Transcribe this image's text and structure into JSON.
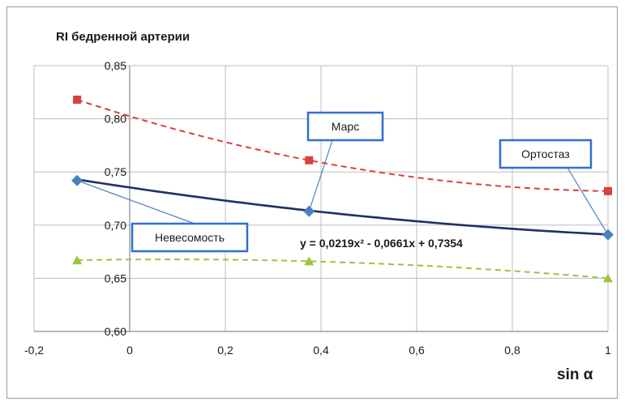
{
  "chart_data": {
    "type": "scatter",
    "title": "RI бедренной артерии",
    "xlabel": "sin α",
    "ylabel": "",
    "xlim": [
      -0.2,
      1.0
    ],
    "ylim": [
      0.6,
      0.85
    ],
    "x_ticks": [
      "-0,2",
      "0",
      "0,2",
      "0,4",
      "0,6",
      "0,8",
      "1"
    ],
    "y_ticks": [
      "0,60",
      "0,65",
      "0,70",
      "0,75",
      "0,80",
      "0,85"
    ],
    "grid": true,
    "series": [
      {
        "color": "#d94040",
        "marker": "square",
        "line": "dashed",
        "x": [
          -0.11,
          0.375,
          1.0
        ],
        "y": [
          0.818,
          0.761,
          0.732
        ]
      },
      {
        "color": "#4a7fc1",
        "marker": "diamond",
        "line": "points",
        "x": [
          -0.11,
          0.375,
          1.0
        ],
        "y": [
          0.742,
          0.713,
          0.691
        ]
      },
      {
        "color": "#9bc53d",
        "marker": "triangle",
        "line": "dashed",
        "x": [
          -0.11,
          0.375,
          1.0
        ],
        "y": [
          0.667,
          0.666,
          0.65
        ]
      }
    ],
    "trendline": {
      "color": "#1f2f66",
      "a": 0.0219,
      "b": -0.0661,
      "c": 0.7354,
      "label": "y = 0,0219x² - 0,0661x + 0,7354"
    },
    "annotations": [
      {
        "label": "Невесомость",
        "target_x": -0.11,
        "target_y": 0.742
      },
      {
        "label": "Марс",
        "target_x": 0.375,
        "target_y": 0.713
      },
      {
        "label": "Ортостаз",
        "target_x": 1.0,
        "target_y": 0.691
      }
    ]
  }
}
